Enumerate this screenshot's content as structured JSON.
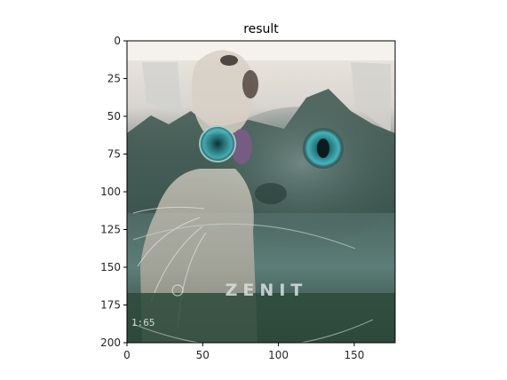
{
  "chart_data": {
    "type": "image",
    "title": "result",
    "xlabel": "",
    "ylabel": "",
    "xlim": [
      0,
      177
    ],
    "ylim": [
      200,
      0
    ],
    "xticks": [
      0,
      50,
      100,
      150
    ],
    "yticks": [
      0,
      25,
      50,
      75,
      100,
      125,
      150,
      175,
      200
    ],
    "grid": false,
    "legend": "none"
  },
  "image": {
    "overlay_text": "ZENIT",
    "corner_text": "1:65",
    "colors": {
      "sky": "#e9e4de",
      "forest": "#3f5a52",
      "teal_fur": "#5d7f7b",
      "dog_fur": "#cfc7bc",
      "grass": "#2f4a3e",
      "eye": "#2f8d96"
    }
  }
}
